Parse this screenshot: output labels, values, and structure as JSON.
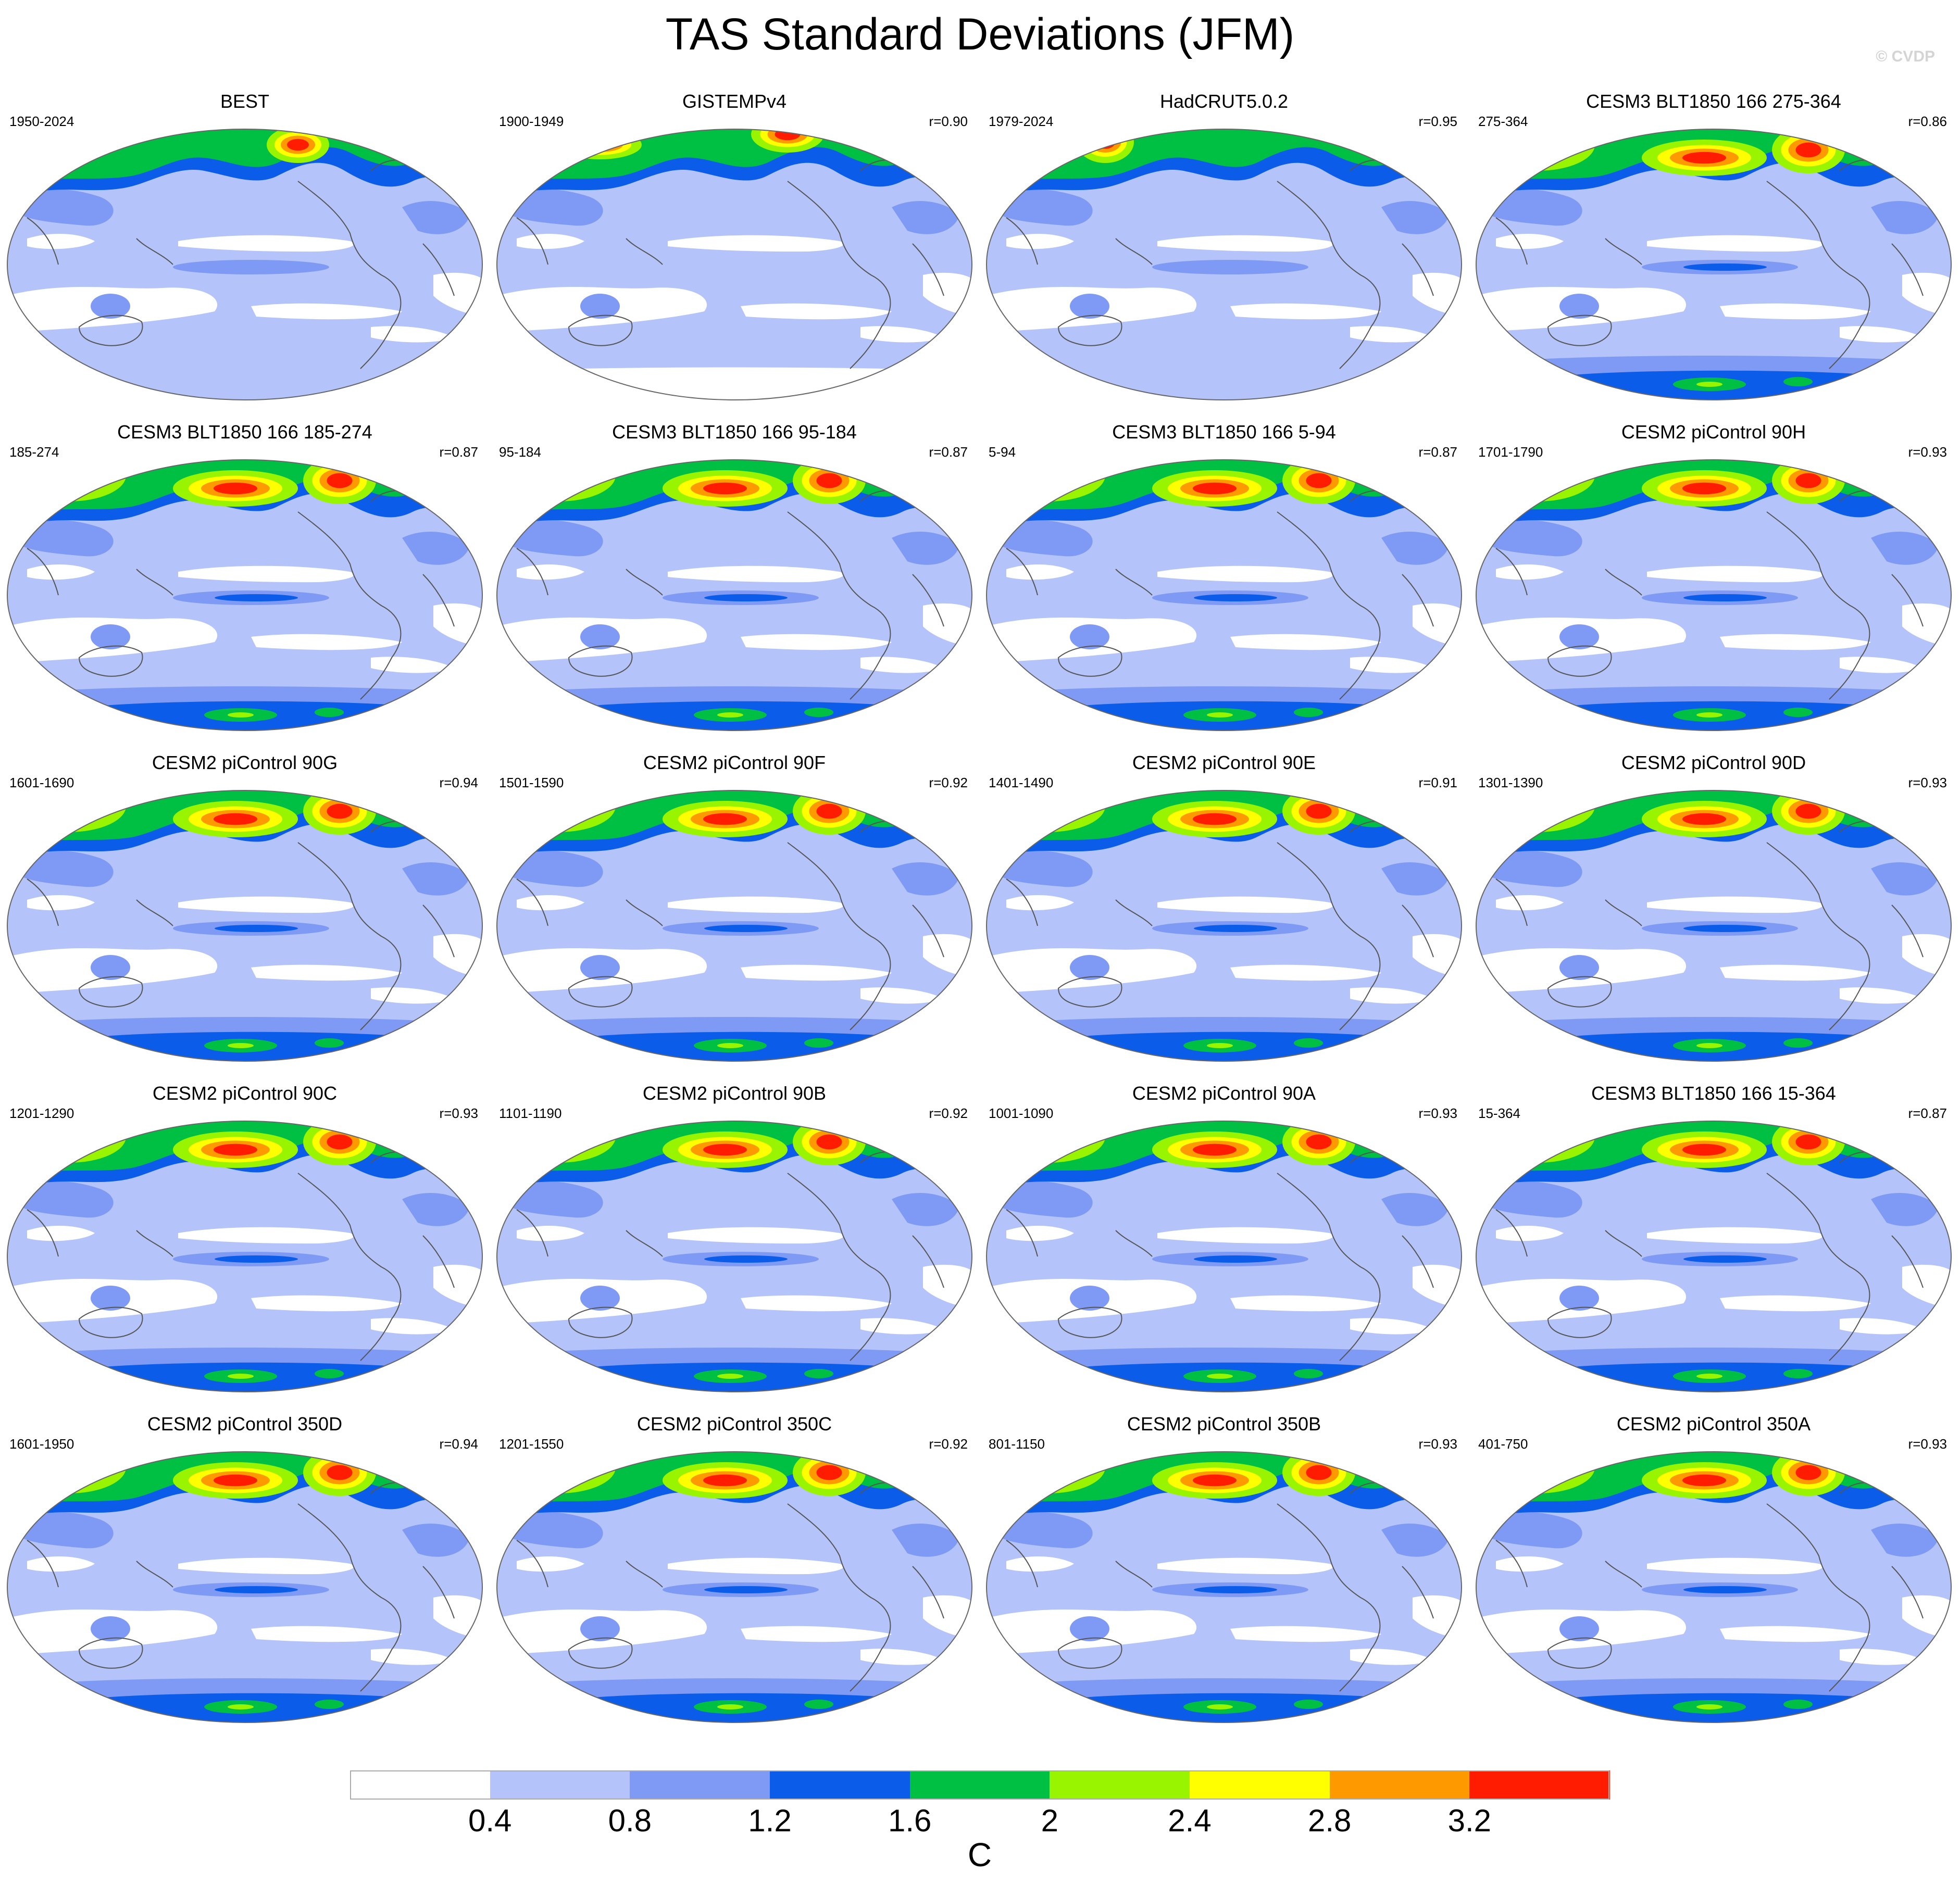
{
  "title": "TAS Standard Deviations (JFM)",
  "watermark": "© CVDP",
  "units": "C",
  "colorbar": {
    "levels": [
      "0.4",
      "0.8",
      "1.2",
      "1.6",
      "2",
      "2.4",
      "2.8",
      "3.2"
    ],
    "colors": [
      "#ffffff",
      "#b4c4fa",
      "#7f9af4",
      "#0b5de9",
      "#00c044",
      "#99f400",
      "#ffff00",
      "#ff9900",
      "#ff1c00"
    ]
  },
  "colors": {
    "land_outline": "#555555",
    "map_edge": "#666666"
  },
  "panels": [
    {
      "title": "BEST",
      "period": "1950-2024",
      "r": "",
      "style": "obs1"
    },
    {
      "title": "GISTEMPv4",
      "period": "1900-1949",
      "r": "r=0.90",
      "style": "obs2"
    },
    {
      "title": "HadCRUT5.0.2",
      "period": "1979-2024",
      "r": "r=0.95",
      "style": "obs3"
    },
    {
      "title": "CESM3 BLT1850 166 275-364",
      "period": "275-364",
      "r": "r=0.86",
      "style": "model"
    },
    {
      "title": "CESM3 BLT1850 166 185-274",
      "period": "185-274",
      "r": "r=0.87",
      "style": "model"
    },
    {
      "title": "CESM3 BLT1850 166 95-184",
      "period": "95-184",
      "r": "r=0.87",
      "style": "model"
    },
    {
      "title": "CESM3 BLT1850 166 5-94",
      "period": "5-94",
      "r": "r=0.87",
      "style": "model"
    },
    {
      "title": "CESM2 piControl 90H",
      "period": "1701-1790",
      "r": "r=0.93",
      "style": "model"
    },
    {
      "title": "CESM2 piControl 90G",
      "period": "1601-1690",
      "r": "r=0.94",
      "style": "model"
    },
    {
      "title": "CESM2 piControl 90F",
      "period": "1501-1590",
      "r": "r=0.92",
      "style": "model"
    },
    {
      "title": "CESM2 piControl 90E",
      "period": "1401-1490",
      "r": "r=0.91",
      "style": "model"
    },
    {
      "title": "CESM2 piControl 90D",
      "period": "1301-1390",
      "r": "r=0.93",
      "style": "model"
    },
    {
      "title": "CESM2 piControl 90C",
      "period": "1201-1290",
      "r": "r=0.93",
      "style": "model"
    },
    {
      "title": "CESM2 piControl 90B",
      "period": "1101-1190",
      "r": "r=0.92",
      "style": "model"
    },
    {
      "title": "CESM2 piControl 90A",
      "period": "1001-1090",
      "r": "r=0.93",
      "style": "model"
    },
    {
      "title": "CESM3 BLT1850 166 15-364",
      "period": "15-364",
      "r": "r=0.87",
      "style": "model"
    },
    {
      "title": "CESM2 piControl 350D",
      "period": "1601-1950",
      "r": "r=0.94",
      "style": "model"
    },
    {
      "title": "CESM2 piControl 350C",
      "period": "1201-1550",
      "r": "r=0.92",
      "style": "model"
    },
    {
      "title": "CESM2 piControl 350B",
      "period": "801-1150",
      "r": "r=0.93",
      "style": "model"
    },
    {
      "title": "CESM2 piControl 350A",
      "period": "401-750",
      "r": "r=0.93",
      "style": "model"
    }
  ]
}
